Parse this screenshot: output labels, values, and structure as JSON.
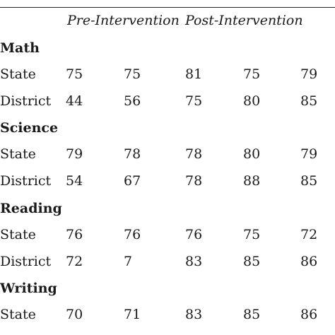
{
  "header": {
    "pre": "Pre-Intervention",
    "post": "Post-Intervention"
  },
  "sections": [
    {
      "name": "Math",
      "rows": [
        {
          "label": "State",
          "values": [
            "75",
            "75",
            "81",
            "75",
            "79"
          ]
        },
        {
          "label": "District",
          "values": [
            "44",
            "56",
            "75",
            "80",
            "85"
          ]
        }
      ]
    },
    {
      "name": "Science",
      "rows": [
        {
          "label": "State",
          "values": [
            "79",
            "78",
            "78",
            "80",
            "79"
          ]
        },
        {
          "label": "District",
          "values": [
            "54",
            "67",
            "78",
            "88",
            "85"
          ]
        }
      ]
    },
    {
      "name": "Reading",
      "rows": [
        {
          "label": "State",
          "values": [
            "76",
            "76",
            "76",
            "75",
            "72"
          ]
        },
        {
          "label": "District",
          "values": [
            "72",
            "7",
            "83",
            "85",
            "86"
          ]
        }
      ]
    },
    {
      "name": "Writing",
      "rows": [
        {
          "label": "State",
          "values": [
            "70",
            "71",
            "83",
            "85",
            "86"
          ]
        }
      ]
    }
  ]
}
